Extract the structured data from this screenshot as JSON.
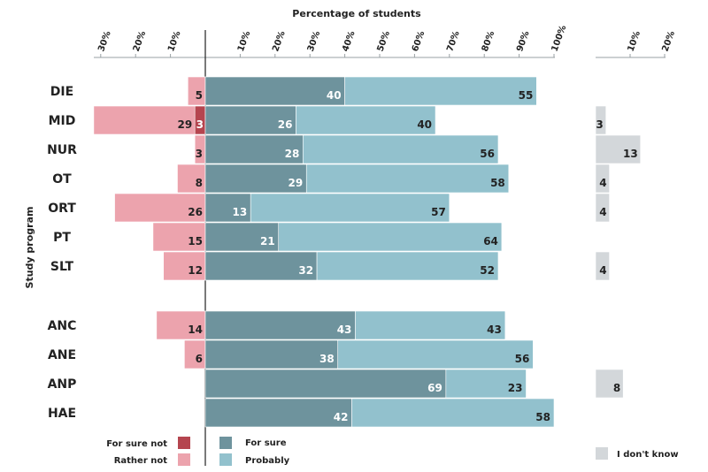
{
  "chart_data": {
    "type": "diverging-bar",
    "title": "Percentage of students",
    "ylabel": "Study program",
    "xlim_positive": [
      0,
      100
    ],
    "xlim_negative": [
      0,
      30
    ],
    "xlim_dontknow": [
      0,
      20
    ],
    "ticks_positive": [
      "10%",
      "20%",
      "30%",
      "40%",
      "50%",
      "60%",
      "70%",
      "80%",
      "90%",
      "100%"
    ],
    "ticks_negative": [
      "30%",
      "20%",
      "10%"
    ],
    "ticks_dontknow": [
      "10%",
      "20%"
    ],
    "groups": [
      [
        "DIE",
        "MID",
        "NUR",
        "OT",
        "ORT",
        "PT",
        "SLT"
      ],
      [
        "ANC",
        "ANE",
        "ANP",
        "HAE"
      ]
    ],
    "categories": [
      "DIE",
      "MID",
      "NUR",
      "OT",
      "ORT",
      "PT",
      "SLT",
      "ANC",
      "ANE",
      "ANP",
      "HAE"
    ],
    "series": [
      {
        "name": "For sure not",
        "side": "negative",
        "color": "#b5454f",
        "values": [
          0,
          3,
          0,
          0,
          0,
          0,
          0,
          0,
          0,
          0,
          0
        ]
      },
      {
        "name": "Rather not",
        "side": "negative",
        "color": "#eca3ad",
        "values": [
          5,
          29,
          3,
          8,
          26,
          15,
          12,
          14,
          6,
          0,
          0
        ]
      },
      {
        "name": "For sure",
        "side": "positive",
        "color": "#6e939d",
        "values": [
          40,
          26,
          28,
          29,
          13,
          21,
          32,
          43,
          38,
          69,
          42
        ]
      },
      {
        "name": "Probably",
        "side": "positive",
        "color": "#92c1cd",
        "values": [
          55,
          40,
          56,
          58,
          57,
          64,
          52,
          43,
          56,
          23,
          58
        ]
      },
      {
        "name": "I don't know",
        "side": "dontknow",
        "color": "#d3d7da",
        "values": [
          0,
          3,
          13,
          4,
          4,
          0,
          4,
          0,
          0,
          8,
          0
        ]
      }
    ],
    "legend": [
      {
        "name": "For sure not",
        "color": "#b5454f"
      },
      {
        "name": "Rather not",
        "color": "#eca3ad"
      },
      {
        "name": "For sure",
        "color": "#6e939d"
      },
      {
        "name": "Probably",
        "color": "#92c1cd"
      },
      {
        "name": "I don't know",
        "color": "#d3d7da"
      }
    ],
    "legend_position": "bottom"
  }
}
